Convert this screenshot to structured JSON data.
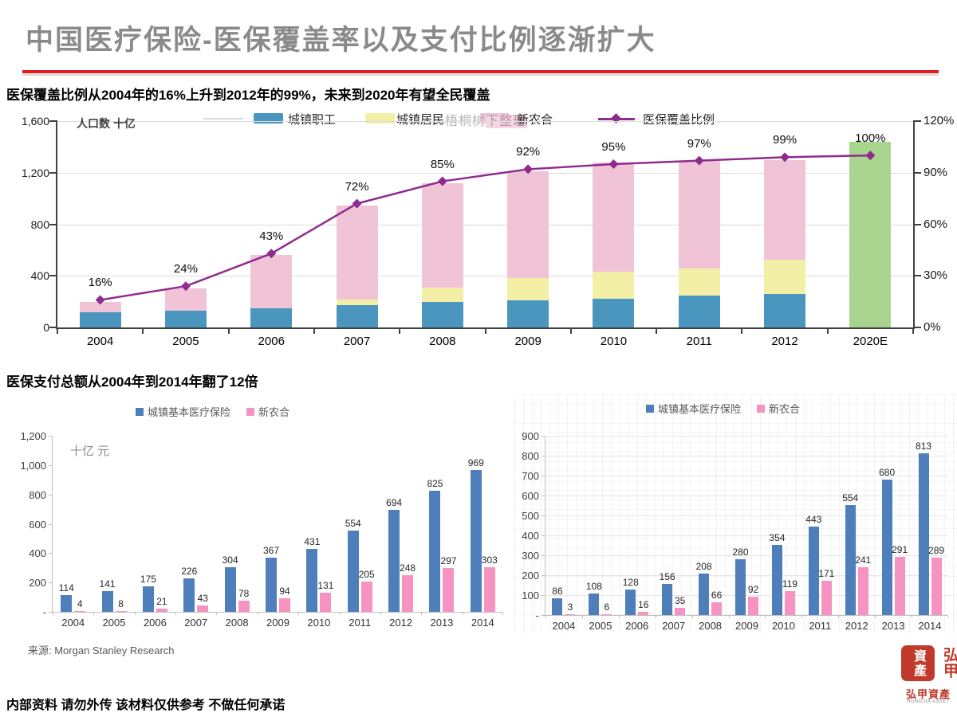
{
  "slide": {
    "title": "中国医疗保险-医保覆盖率以及支付比例逐渐扩大",
    "title_color": "#8a8a8a",
    "accent_red": "#e31c1c",
    "section1_title": "医保覆盖比例从2004年的16%上升到2012年的99%，未来到2020年有望全民覆盖",
    "section2_title": "医保支付总额从2004年到2014年翻了12倍",
    "watermark": "梧桐树下整理",
    "source": "来源: Morgan Stanley Research",
    "footer": "内部资料 请勿外传 该材料仅供参考 不做任何承诺"
  },
  "logo": {
    "seal_left_chars": "資產",
    "seal_right_chars": "弘甲",
    "name_cn": "弘甲資產",
    "name_en": "HONGJIA ASSET",
    "seal_color": "#c0392b"
  },
  "chart_data": [
    {
      "type": "bar",
      "subtype": "stacked-bar-with-line",
      "title": "医保覆盖比例从2004年的16%上升到2012年的99%，未来到2020年有望全民覆盖",
      "unit_label": "人口数 十亿",
      "categories": [
        "2004",
        "2005",
        "2006",
        "2007",
        "2008",
        "2009",
        "2010",
        "2011",
        "2012",
        "2020E"
      ],
      "series": [
        {
          "name": "城镇职工",
          "color": "#4a96be",
          "values": [
            115,
            130,
            150,
            175,
            195,
            210,
            225,
            245,
            260,
            0
          ]
        },
        {
          "name": "城镇居民",
          "color": "#f3efa6",
          "values": [
            0,
            0,
            0,
            40,
            115,
            175,
            205,
            215,
            265,
            0
          ]
        },
        {
          "name": "新农合",
          "color": "#f0c3d7",
          "values": [
            80,
            175,
            410,
            730,
            810,
            825,
            850,
            830,
            775,
            0
          ]
        },
        {
          "name": "2020E全民覆盖",
          "color": "#a9d48e",
          "values": [
            0,
            0,
            0,
            0,
            0,
            0,
            0,
            0,
            0,
            1440
          ],
          "in_legend": false
        }
      ],
      "line": {
        "name": "医保覆盖比例",
        "color": "#8e2c8e",
        "values": [
          16,
          24,
          43,
          72,
          85,
          92,
          95,
          97,
          99,
          100
        ],
        "labels": [
          "16%",
          "24%",
          "43%",
          "72%",
          "85%",
          "92%",
          "95%",
          "97%",
          "99%",
          "100%"
        ]
      },
      "y_left": {
        "ticks": [
          "0",
          "400",
          "800",
          "1,200",
          "1,600"
        ],
        "max": 1600,
        "step": 400
      },
      "y_right": {
        "ticks": [
          "0%",
          "30%",
          "60%",
          "90%",
          "120%"
        ],
        "max": 120,
        "step": 30
      },
      "legend_position": "top",
      "grid": "horizontal"
    },
    {
      "type": "bar",
      "subtype": "grouped",
      "unit_label": "十亿 元",
      "categories": [
        "2004",
        "2005",
        "2006",
        "2007",
        "2008",
        "2009",
        "2010",
        "2011",
        "2012",
        "2013",
        "2014"
      ],
      "series": [
        {
          "name": "城镇基本医疗保险",
          "color": "#4e7fbb",
          "values": [
            114,
            141,
            175,
            226,
            304,
            367,
            431,
            554,
            694,
            825,
            969
          ]
        },
        {
          "name": "新农合",
          "color": "#f793c3",
          "values": [
            4,
            8,
            21,
            43,
            78,
            94,
            131,
            205,
            248,
            297,
            303
          ]
        }
      ],
      "yticks": [
        "-",
        "200",
        "400",
        "600",
        "800",
        "1,000",
        "1,200"
      ],
      "ylim": [
        0,
        1200
      ],
      "ystep": 200,
      "show_values": true,
      "grid": false,
      "legend_position": "top"
    },
    {
      "type": "bar",
      "subtype": "grouped",
      "categories": [
        "2004",
        "2005",
        "2006",
        "2007",
        "2008",
        "2009",
        "2010",
        "2011",
        "2012",
        "2013",
        "2014"
      ],
      "series": [
        {
          "name": "城镇基本医疗保险",
          "color": "#4e7fbb",
          "values": [
            86,
            108,
            128,
            156,
            208,
            280,
            354,
            443,
            554,
            680,
            813
          ]
        },
        {
          "name": "新农合",
          "color": "#f793c3",
          "values": [
            3,
            6,
            16,
            35,
            66,
            92,
            119,
            171,
            241,
            291,
            289
          ]
        }
      ],
      "yticks": [
        "-",
        "100",
        "200",
        "300",
        "400",
        "500",
        "600",
        "700",
        "800",
        "900"
      ],
      "ylim": [
        0,
        900
      ],
      "ystep": 100,
      "show_values": true,
      "grid": "horizontal",
      "legend_position": "top"
    }
  ]
}
